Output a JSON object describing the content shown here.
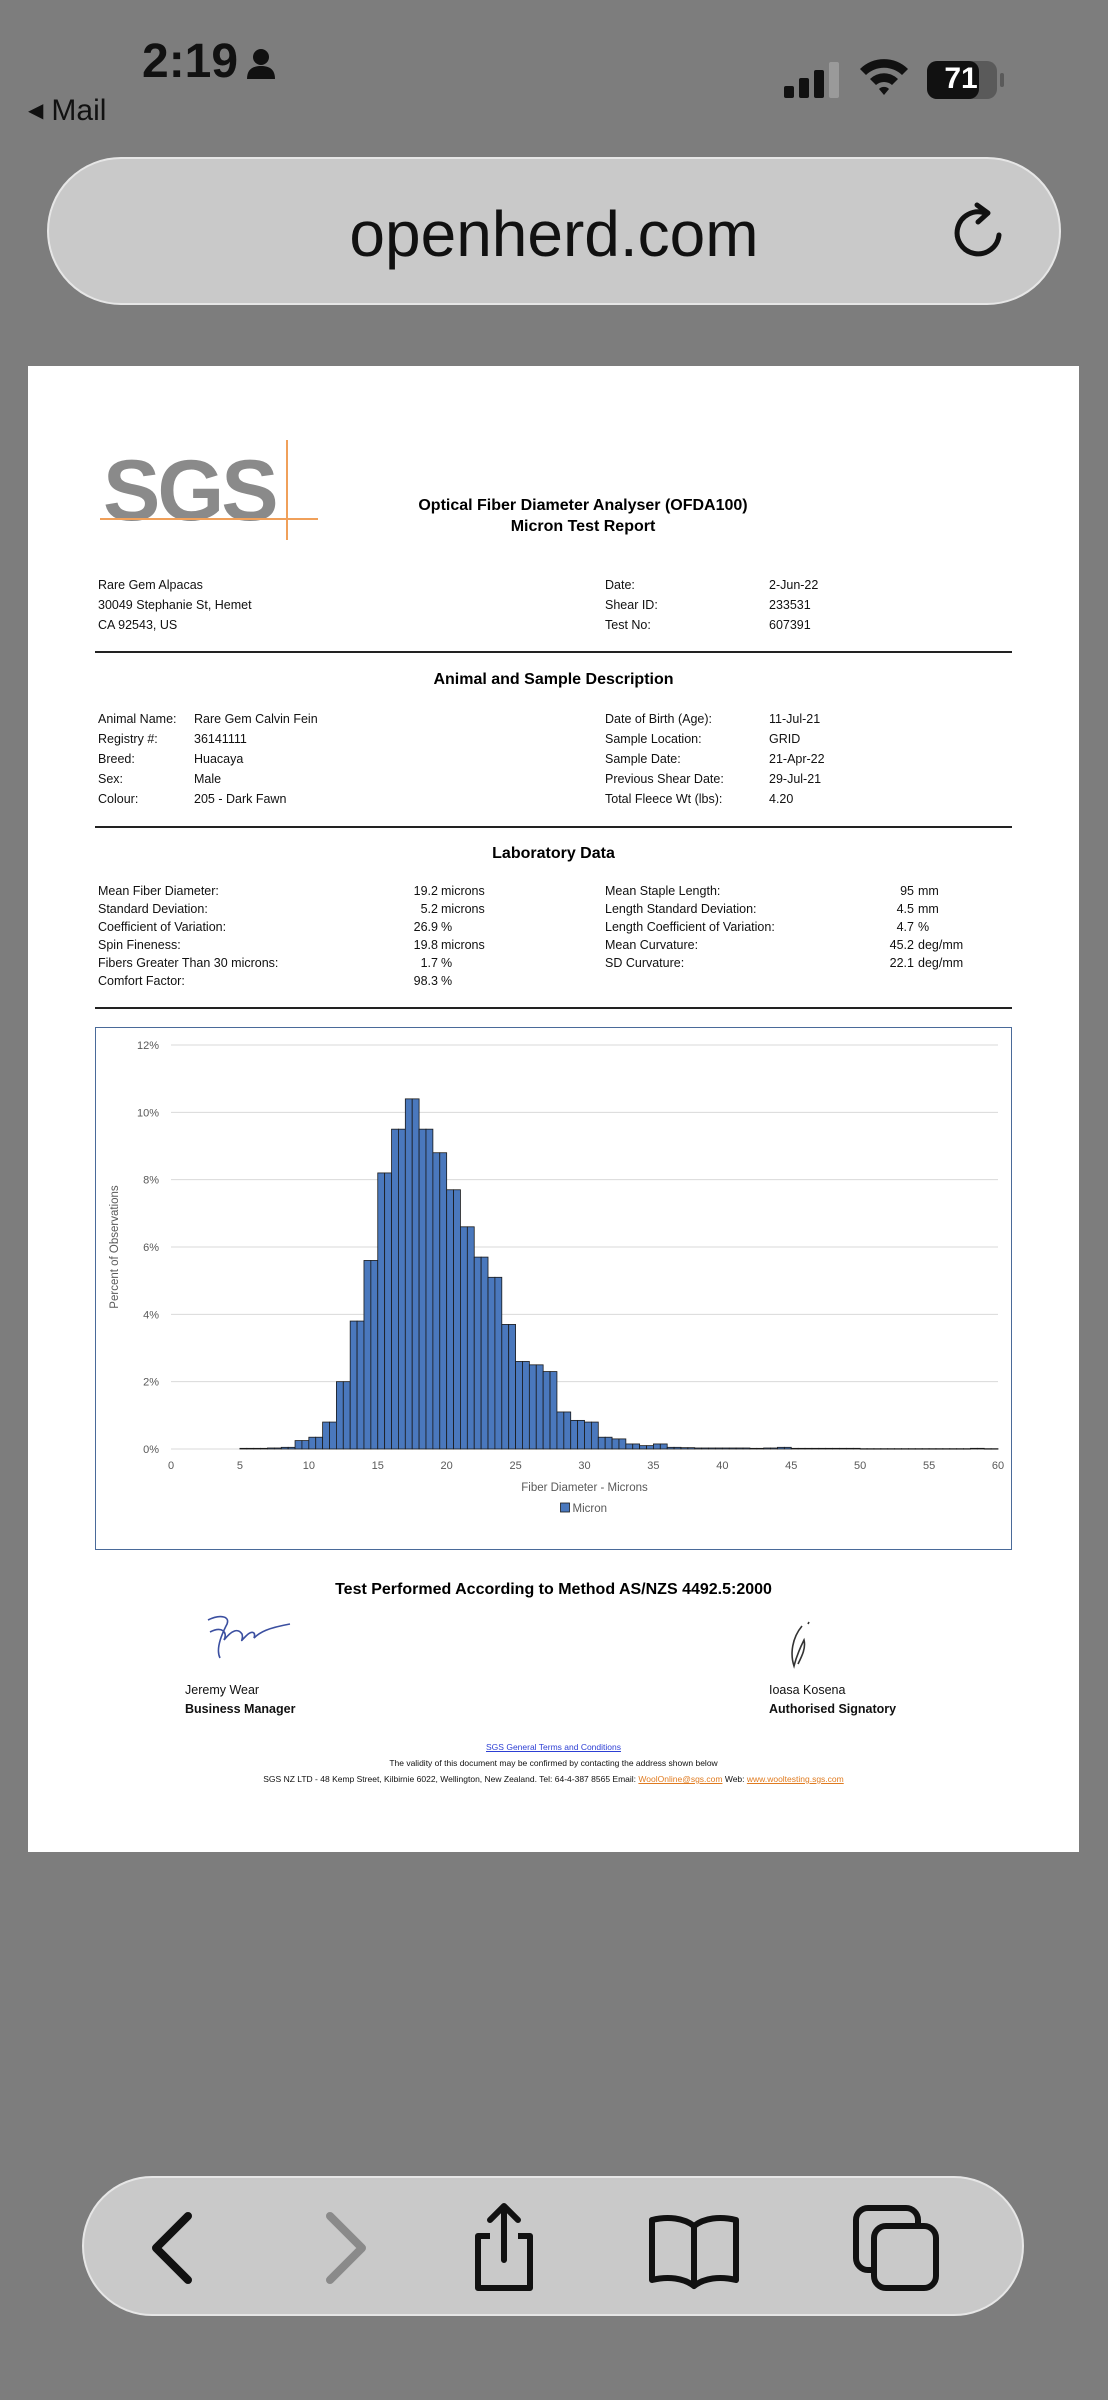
{
  "status_bar": {
    "time": "2:19",
    "back_label": "Mail",
    "battery": "71"
  },
  "browser": {
    "url": "openherd.com"
  },
  "report": {
    "logo": "SGS",
    "title_line1": "Optical Fiber Diameter Analyser (OFDA100)",
    "title_line2": "Micron Test Report",
    "owner": {
      "name": "Rare Gem Alpacas",
      "address1": "30049 Stephanie St, Hemet",
      "address2": "CA 92543, US"
    },
    "meta": [
      {
        "label": "Date:",
        "value": "2-Jun-22"
      },
      {
        "label": "Shear ID:",
        "value": "233531"
      },
      {
        "label": "Test No:",
        "value": "607391"
      }
    ],
    "animal_heading": "Animal and Sample Description",
    "animal_left": [
      {
        "label": "Animal Name:",
        "value": "Rare Gem Calvin Fein"
      },
      {
        "label": "Registry #:",
        "value": "36141111"
      },
      {
        "label": "Breed:",
        "value": "Huacaya"
      },
      {
        "label": "Sex:",
        "value": "Male"
      },
      {
        "label": "Colour:",
        "value": "205 - Dark Fawn"
      }
    ],
    "animal_right": [
      {
        "label": "Date of Birth (Age):",
        "value": "11-Jul-21"
      },
      {
        "label": "Sample Location:",
        "value": "GRID"
      },
      {
        "label": "Sample Date:",
        "value": "21-Apr-22"
      },
      {
        "label": "Previous Shear Date:",
        "value": "29-Jul-21"
      },
      {
        "label": "Total Fleece Wt (lbs):",
        "value": "4.20"
      }
    ],
    "lab_heading": "Laboratory Data",
    "lab_left": [
      {
        "label": "Mean Fiber Diameter:",
        "value": "19.2",
        "unit": "microns"
      },
      {
        "label": "Standard Deviation:",
        "value": "5.2",
        "unit": "microns"
      },
      {
        "label": "Coefficient of Variation:",
        "value": "26.9",
        "unit": "%"
      },
      {
        "label": "Spin Fineness:",
        "value": "19.8",
        "unit": "microns"
      },
      {
        "label": "Fibers Greater Than 30 microns:",
        "value": "1.7",
        "unit": "%"
      },
      {
        "label": "Comfort Factor:",
        "value": "98.3",
        "unit": "%"
      }
    ],
    "lab_right": [
      {
        "label": "Mean Staple Length:",
        "value": "95",
        "unit": "mm"
      },
      {
        "label": "Length Standard Deviation:",
        "value": "4.5",
        "unit": "mm"
      },
      {
        "label": "Length Coefficient of Variation:",
        "value": "4.7",
        "unit": "%"
      },
      {
        "label": "Mean Curvature:",
        "value": "45.2",
        "unit": "deg/mm"
      },
      {
        "label": "SD Curvature:",
        "value": "22.1",
        "unit": "deg/mm"
      }
    ],
    "method": "Test Performed According to Method AS/NZS 4492.5:2000",
    "signatories": [
      {
        "name": "Jeremy Wear",
        "title": "Business Manager"
      },
      {
        "name": "Ioasa Kosena",
        "title": "Authorised Signatory"
      }
    ],
    "footer": {
      "terms_link": "SGS General Terms and Conditions",
      "validity": "The validity of this document may be confirmed by contacting the address shown below",
      "address": "SGS NZ LTD - 48 Kemp Street, Kilbirnie 6022, Wellington, New Zealand.  Tel: 64-4-387 8565 Email: ",
      "email": "WoolOnline@sgs.com",
      "web_label": " Web: ",
      "web": "www.wooltesting.sgs.com"
    }
  },
  "chart_data": {
    "type": "bar",
    "xlabel": "Fiber Diameter - Microns",
    "ylabel": "Percent of Observations",
    "legend": [
      "Micron"
    ],
    "legend_position": "bottom",
    "xlim": [
      0,
      60
    ],
    "ylim": [
      0,
      12
    ],
    "xticks": [
      "0",
      "5",
      "10",
      "15",
      "20",
      "25",
      "30",
      "35",
      "40",
      "45",
      "50",
      "55",
      "60"
    ],
    "yticks": [
      "0%",
      "2%",
      "4%",
      "6%",
      "8%",
      "10%",
      "12%"
    ],
    "grid": true,
    "bar_color": "#4a78bd",
    "x": [
      5,
      5.5,
      6,
      6.5,
      7,
      7.5,
      8,
      8.5,
      9,
      9.5,
      10,
      10.5,
      11,
      11.5,
      12,
      12.5,
      13,
      13.5,
      14,
      14.5,
      15,
      15.5,
      16,
      16.5,
      17,
      17.5,
      18,
      18.5,
      19,
      19.5,
      20,
      20.5,
      21,
      21.5,
      22,
      22.5,
      23,
      23.5,
      24,
      24.5,
      25,
      25.5,
      26,
      26.5,
      27,
      27.5,
      28,
      28.5,
      29,
      29.5,
      30,
      30.5,
      31,
      31.5,
      32,
      32.5,
      33,
      33.5,
      34,
      34.5,
      35,
      35.5,
      36,
      36.5,
      37,
      37.5,
      38,
      38.5,
      39,
      39.5,
      40,
      40.5,
      41,
      41.5,
      42,
      42.5,
      43,
      43.5,
      44,
      44.5,
      45,
      45.5,
      46,
      46.5,
      47,
      47.5,
      48,
      48.5,
      49,
      49.5,
      50,
      50.5,
      51,
      51.5,
      52,
      52.5,
      53,
      53.5,
      54,
      54.5,
      55,
      55.5,
      56,
      56.5,
      57,
      57.5,
      58,
      58.5,
      59,
      59.5
    ],
    "values": [
      0.02,
      0.02,
      0.02,
      0.02,
      0.03,
      0.03,
      0.05,
      0.05,
      0.25,
      0.25,
      0.35,
      0.35,
      0.8,
      0.8,
      2.0,
      2.0,
      3.8,
      3.8,
      5.6,
      5.6,
      8.2,
      8.2,
      9.5,
      9.5,
      10.4,
      10.4,
      9.5,
      9.5,
      8.8,
      8.8,
      7.7,
      7.7,
      6.6,
      6.6,
      5.7,
      5.7,
      5.1,
      5.1,
      3.7,
      3.7,
      2.6,
      2.6,
      2.5,
      2.5,
      2.3,
      2.3,
      1.1,
      1.1,
      0.85,
      0.85,
      0.8,
      0.8,
      0.35,
      0.35,
      0.3,
      0.3,
      0.15,
      0.15,
      0.1,
      0.1,
      0.15,
      0.15,
      0.05,
      0.05,
      0.04,
      0.04,
      0.03,
      0.03,
      0.03,
      0.03,
      0.03,
      0.03,
      0.03,
      0.03,
      0.02,
      0.02,
      0.03,
      0.03,
      0.05,
      0.05,
      0.02,
      0.02,
      0.02,
      0.02,
      0.02,
      0.02,
      0.02,
      0.02,
      0.02,
      0.02,
      0.01,
      0.01,
      0.01,
      0.01,
      0.01,
      0.01,
      0.01,
      0.01,
      0.01,
      0.01,
      0.01,
      0.01,
      0.01,
      0.01,
      0.01,
      0.01,
      0.02,
      0.02,
      0.01,
      0.01
    ]
  }
}
